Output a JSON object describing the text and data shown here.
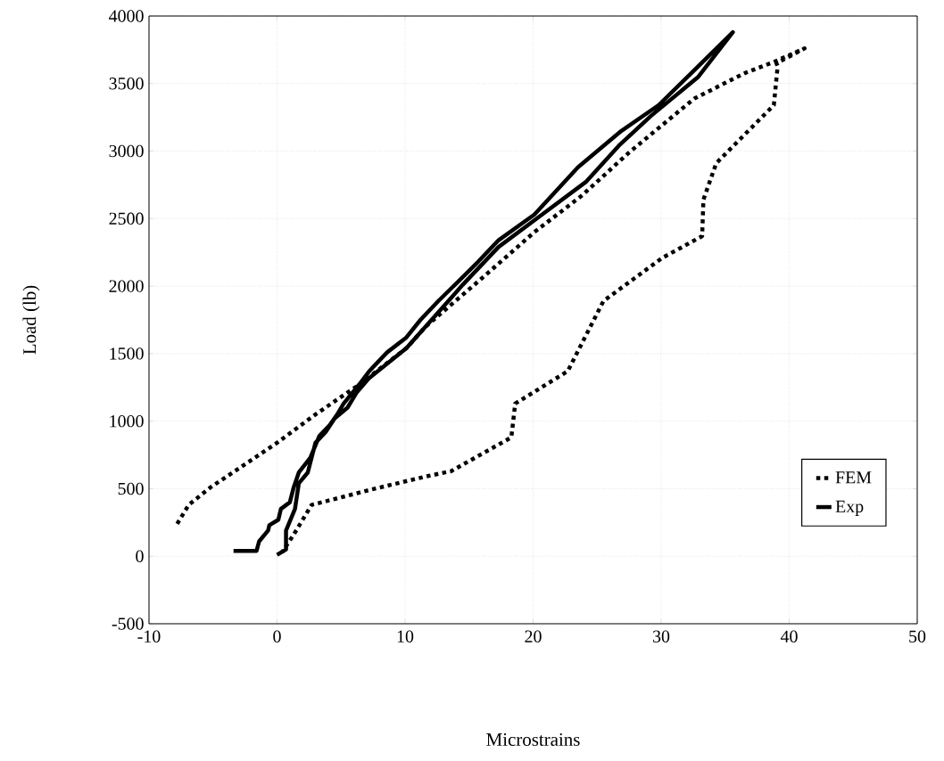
{
  "chart_data": {
    "type": "line",
    "xlabel": "Microstrains",
    "ylabel": "Load (lb)",
    "xlim": [
      -10,
      50
    ],
    "ylim": [
      -500,
      4000
    ],
    "xticks": [
      -10,
      0,
      10,
      20,
      30,
      40,
      50
    ],
    "yticks": [
      -500,
      0,
      500,
      1000,
      1500,
      2000,
      2500,
      3000,
      3500,
      4000
    ],
    "grid": true,
    "legend": "bottom right",
    "marker": "none",
    "series": [
      {
        "name": "FEM",
        "color": "#000000",
        "line_style": "dotted",
        "x": [
          -7.8,
          -6.9,
          -5.2,
          0,
          3,
          6.4,
          10.1,
          11.6,
          15.9,
          20.1,
          23.8,
          27.5,
          32.6,
          36.6,
          38.8,
          41.2,
          39,
          39.1,
          38.8,
          34.3,
          33.3,
          33.2,
          30.1,
          25.5,
          22.7,
          18.6,
          18.3,
          13.6,
          11.6,
          7.2,
          2.7,
          1.3,
          0.4
        ],
        "values": [
          240,
          380,
          510,
          840,
          1050,
          1270,
          1540,
          1700,
          2050,
          2400,
          2670,
          2990,
          3390,
          3580,
          3660,
          3760,
          3650,
          3630,
          3340,
          2910,
          2640,
          2370,
          2210,
          1890,
          1370,
          1130,
          880,
          630,
          590,
          490,
          380,
          160,
          30
        ]
      },
      {
        "name": "Exp",
        "color": "#000000",
        "line_style": "solid",
        "x": [
          -3.4,
          -1.6,
          -1.4,
          -0.7,
          -0.6,
          0.1,
          0.3,
          1,
          1.3,
          1.7,
          2.6,
          3.3,
          4.1,
          4.7,
          5.2,
          6.4,
          7.2,
          8.6,
          10.1,
          11.2,
          12.6,
          14,
          15.7,
          17.3,
          20.1,
          23.5,
          26.9,
          29.8,
          32.6,
          35.6,
          32.9,
          29.2,
          26.7,
          24.1,
          20.7,
          17.3,
          14.5,
          10.1,
          7.2,
          6.2,
          5.5,
          4.5,
          3.8,
          3,
          2.4,
          1.7,
          1.4,
          0.7,
          0.7,
          0
        ],
        "values": [
          40,
          40,
          110,
          190,
          230,
          270,
          350,
          400,
          510,
          620,
          730,
          890,
          970,
          1050,
          1130,
          1270,
          1370,
          1510,
          1620,
          1750,
          1890,
          2020,
          2180,
          2340,
          2530,
          2880,
          3150,
          3340,
          3600,
          3880,
          3550,
          3260,
          3040,
          2770,
          2530,
          2290,
          2010,
          1540,
          1320,
          1210,
          1100,
          1020,
          920,
          840,
          620,
          540,
          350,
          190,
          50,
          10
        ]
      }
    ]
  }
}
